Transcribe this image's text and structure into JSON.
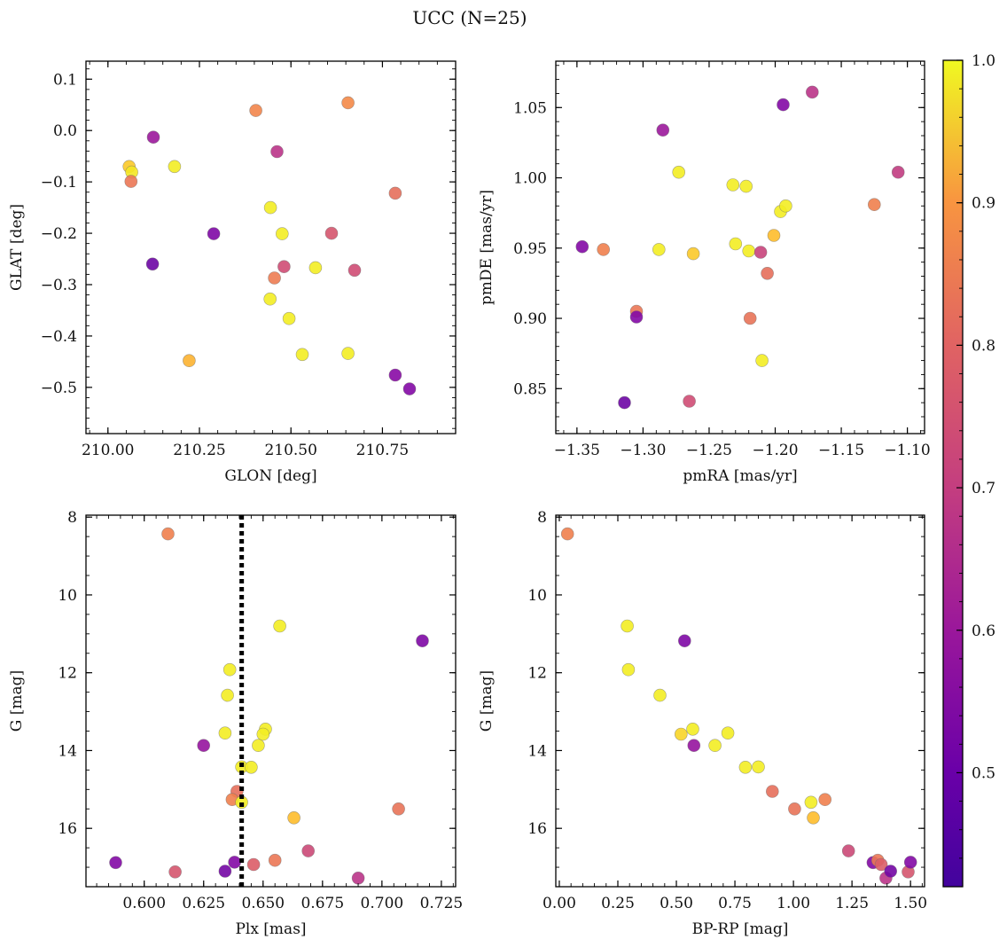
{
  "figure": {
    "title": "UCC (N=25)"
  },
  "colorbar": {
    "range": [
      0.42,
      1.0
    ],
    "ticks": [
      "0.5",
      "0.6",
      "0.7",
      "0.8",
      "0.9",
      "1.0"
    ],
    "tick_values": [
      0.5,
      0.6,
      0.7,
      0.8,
      0.9,
      1.0
    ],
    "colormap": "plasma"
  },
  "chart_data": [
    {
      "type": "scatter",
      "xlabel": "GLON [deg]",
      "ylabel": "GLAT [deg]",
      "xlim": [
        209.94,
        210.95
      ],
      "ylim": [
        -0.59,
        0.135
      ],
      "xticks": [
        "210.00",
        "210.25",
        "210.50",
        "210.75"
      ],
      "xtick_values": [
        210.0,
        210.25,
        210.5,
        210.75
      ],
      "yticks": [
        "0.1",
        "0.0",
        "−0.1",
        "−0.2",
        "−0.3",
        "−0.4",
        "−0.5"
      ],
      "ytick_values": [
        0.1,
        0.0,
        -0.1,
        -0.2,
        -0.3,
        -0.4,
        -0.5
      ],
      "points": [
        {
          "x": 210.058,
          "y": -0.07,
          "c": 0.92
        },
        {
          "x": 210.065,
          "y": -0.081,
          "c": 0.97
        },
        {
          "x": 210.063,
          "y": -0.099,
          "c": 0.76
        },
        {
          "x": 210.124,
          "y": -0.013,
          "c": 0.53
        },
        {
          "x": 210.122,
          "y": -0.26,
          "c": 0.44
        },
        {
          "x": 210.182,
          "y": -0.07,
          "c": 0.98
        },
        {
          "x": 210.222,
          "y": -0.448,
          "c": 0.88
        },
        {
          "x": 210.289,
          "y": -0.201,
          "c": 0.47
        },
        {
          "x": 210.404,
          "y": 0.039,
          "c": 0.79
        },
        {
          "x": 210.444,
          "y": -0.15,
          "c": 0.98
        },
        {
          "x": 210.443,
          "y": -0.328,
          "c": 0.98
        },
        {
          "x": 210.455,
          "y": -0.287,
          "c": 0.77
        },
        {
          "x": 210.462,
          "y": -0.041,
          "c": 0.6
        },
        {
          "x": 210.476,
          "y": -0.201,
          "c": 0.98
        },
        {
          "x": 210.481,
          "y": -0.265,
          "c": 0.66
        },
        {
          "x": 210.495,
          "y": -0.366,
          "c": 0.98
        },
        {
          "x": 210.531,
          "y": -0.436,
          "c": 0.98
        },
        {
          "x": 210.567,
          "y": -0.267,
          "c": 0.98
        },
        {
          "x": 210.611,
          "y": -0.2,
          "c": 0.68
        },
        {
          "x": 210.656,
          "y": 0.054,
          "c": 0.8
        },
        {
          "x": 210.656,
          "y": -0.434,
          "c": 0.98
        },
        {
          "x": 210.674,
          "y": -0.272,
          "c": 0.66
        },
        {
          "x": 210.785,
          "y": -0.122,
          "c": 0.74
        },
        {
          "x": 210.785,
          "y": -0.476,
          "c": 0.49
        },
        {
          "x": 210.824,
          "y": -0.503,
          "c": 0.48
        }
      ]
    },
    {
      "type": "scatter",
      "xlabel": "pmRA [mas/yr]",
      "ylabel": "pmDE [mas/yr]",
      "xlim": [
        -1.366,
        -1.087
      ],
      "ylim": [
        0.818,
        1.083
      ],
      "xticks": [
        "−1.35",
        "−1.30",
        "−1.25",
        "−1.20",
        "−1.15",
        "−1.10"
      ],
      "xtick_values": [
        -1.35,
        -1.3,
        -1.25,
        -1.2,
        -1.15,
        -1.1
      ],
      "yticks": [
        "1.05",
        "1.00",
        "0.95",
        "0.90",
        "0.85"
      ],
      "ytick_values": [
        1.05,
        1.0,
        0.95,
        0.9,
        0.85
      ],
      "points": [
        {
          "x": -1.346,
          "y": 0.951,
          "c": 0.48
        },
        {
          "x": -1.33,
          "y": 0.949,
          "c": 0.78
        },
        {
          "x": -1.314,
          "y": 0.84,
          "c": 0.44
        },
        {
          "x": -1.305,
          "y": 0.905,
          "c": 0.76
        },
        {
          "x": -1.305,
          "y": 0.901,
          "c": 0.48
        },
        {
          "x": -1.288,
          "y": 0.949,
          "c": 0.98
        },
        {
          "x": -1.285,
          "y": 1.034,
          "c": 0.53
        },
        {
          "x": -1.273,
          "y": 1.004,
          "c": 0.98
        },
        {
          "x": -1.265,
          "y": 0.841,
          "c": 0.66
        },
        {
          "x": -1.262,
          "y": 0.946,
          "c": 0.92
        },
        {
          "x": -1.232,
          "y": 0.995,
          "c": 0.98
        },
        {
          "x": -1.23,
          "y": 0.953,
          "c": 0.98
        },
        {
          "x": -1.222,
          "y": 0.994,
          "c": 0.98
        },
        {
          "x": -1.22,
          "y": 0.948,
          "c": 0.98
        },
        {
          "x": -1.219,
          "y": 0.9,
          "c": 0.75
        },
        {
          "x": -1.211,
          "y": 0.947,
          "c": 0.64
        },
        {
          "x": -1.21,
          "y": 0.87,
          "c": 0.98
        },
        {
          "x": -1.206,
          "y": 0.932,
          "c": 0.74
        },
        {
          "x": -1.201,
          "y": 0.959,
          "c": 0.9
        },
        {
          "x": -1.196,
          "y": 0.976,
          "c": 0.98
        },
        {
          "x": -1.192,
          "y": 0.98,
          "c": 0.98
        },
        {
          "x": -1.194,
          "y": 1.052,
          "c": 0.48
        },
        {
          "x": -1.172,
          "y": 1.061,
          "c": 0.6
        },
        {
          "x": -1.125,
          "y": 0.981,
          "c": 0.78
        },
        {
          "x": -1.107,
          "y": 1.004,
          "c": 0.62
        }
      ]
    },
    {
      "type": "scatter",
      "xlabel": "Plx [mas]",
      "ylabel": "G [mag]",
      "xlim": [
        0.5755,
        0.731
      ],
      "ylim": [
        17.5,
        7.95
      ],
      "xticks": [
        "0.600",
        "0.625",
        "0.650",
        "0.675",
        "0.700",
        "0.725"
      ],
      "xtick_values": [
        0.6,
        0.625,
        0.65,
        0.675,
        0.7,
        0.725
      ],
      "yticks": [
        "8",
        "10",
        "12",
        "14",
        "16"
      ],
      "ytick_values": [
        8,
        10,
        12,
        14,
        16
      ],
      "vline": 0.641,
      "points": [
        {
          "x": 0.61,
          "y": 8.43,
          "c": 0.78
        },
        {
          "x": 0.657,
          "y": 10.8,
          "c": 0.98
        },
        {
          "x": 0.717,
          "y": 11.18,
          "c": 0.47
        },
        {
          "x": 0.636,
          "y": 11.92,
          "c": 0.98
        },
        {
          "x": 0.635,
          "y": 12.58,
          "c": 0.98
        },
        {
          "x": 0.651,
          "y": 13.45,
          "c": 0.98
        },
        {
          "x": 0.634,
          "y": 13.55,
          "c": 0.98
        },
        {
          "x": 0.65,
          "y": 13.58,
          "c": 0.98
        },
        {
          "x": 0.625,
          "y": 13.87,
          "c": 0.52
        },
        {
          "x": 0.648,
          "y": 13.87,
          "c": 0.98
        },
        {
          "x": 0.641,
          "y": 14.42,
          "c": 0.98
        },
        {
          "x": 0.645,
          "y": 14.43,
          "c": 0.98
        },
        {
          "x": 0.639,
          "y": 15.05,
          "c": 0.74
        },
        {
          "x": 0.637,
          "y": 15.26,
          "c": 0.78
        },
        {
          "x": 0.641,
          "y": 15.33,
          "c": 0.98
        },
        {
          "x": 0.707,
          "y": 15.5,
          "c": 0.75
        },
        {
          "x": 0.663,
          "y": 15.73,
          "c": 0.9
        },
        {
          "x": 0.669,
          "y": 16.58,
          "c": 0.65
        },
        {
          "x": 0.655,
          "y": 16.82,
          "c": 0.76
        },
        {
          "x": 0.588,
          "y": 16.88,
          "c": 0.48
        },
        {
          "x": 0.638,
          "y": 16.87,
          "c": 0.48
        },
        {
          "x": 0.646,
          "y": 16.93,
          "c": 0.7
        },
        {
          "x": 0.634,
          "y": 17.1,
          "c": 0.45
        },
        {
          "x": 0.613,
          "y": 17.12,
          "c": 0.68
        },
        {
          "x": 0.69,
          "y": 17.28,
          "c": 0.6
        }
      ]
    },
    {
      "type": "scatter",
      "xlabel": "BP-RP [mag]",
      "ylabel": "G [mag]",
      "xlim": [
        -0.015,
        1.56
      ],
      "ylim": [
        17.5,
        7.95
      ],
      "xticks": [
        "0.00",
        "0.25",
        "0.50",
        "0.75",
        "1.00",
        "1.25",
        "1.50"
      ],
      "xtick_values": [
        0.0,
        0.25,
        0.5,
        0.75,
        1.0,
        1.25,
        1.5
      ],
      "yticks": [
        "8",
        "10",
        "12",
        "14",
        "16"
      ],
      "ytick_values": [
        8,
        10,
        12,
        14,
        16
      ],
      "points": [
        {
          "x": 0.035,
          "y": 8.43,
          "c": 0.78
        },
        {
          "x": 0.29,
          "y": 10.8,
          "c": 0.98
        },
        {
          "x": 0.295,
          "y": 11.92,
          "c": 0.98
        },
        {
          "x": 0.535,
          "y": 11.18,
          "c": 0.47
        },
        {
          "x": 0.43,
          "y": 12.58,
          "c": 0.98
        },
        {
          "x": 0.52,
          "y": 13.58,
          "c": 0.94
        },
        {
          "x": 0.57,
          "y": 13.45,
          "c": 0.98
        },
        {
          "x": 0.575,
          "y": 13.87,
          "c": 0.52
        },
        {
          "x": 0.665,
          "y": 13.87,
          "c": 0.98
        },
        {
          "x": 0.72,
          "y": 13.55,
          "c": 0.98
        },
        {
          "x": 0.795,
          "y": 14.43,
          "c": 0.98
        },
        {
          "x": 0.85,
          "y": 14.42,
          "c": 0.98
        },
        {
          "x": 0.91,
          "y": 15.05,
          "c": 0.74
        },
        {
          "x": 1.005,
          "y": 15.5,
          "c": 0.75
        },
        {
          "x": 1.075,
          "y": 15.33,
          "c": 0.98
        },
        {
          "x": 1.085,
          "y": 15.73,
          "c": 0.9
        },
        {
          "x": 1.135,
          "y": 15.26,
          "c": 0.78
        },
        {
          "x": 1.235,
          "y": 16.58,
          "c": 0.65
        },
        {
          "x": 1.34,
          "y": 16.88,
          "c": 0.48
        },
        {
          "x": 1.36,
          "y": 16.82,
          "c": 0.76
        },
        {
          "x": 1.375,
          "y": 16.93,
          "c": 0.7
        },
        {
          "x": 1.395,
          "y": 17.28,
          "c": 0.6
        },
        {
          "x": 1.415,
          "y": 17.1,
          "c": 0.45
        },
        {
          "x": 1.49,
          "y": 17.12,
          "c": 0.68
        },
        {
          "x": 1.5,
          "y": 16.87,
          "c": 0.48
        }
      ]
    }
  ]
}
